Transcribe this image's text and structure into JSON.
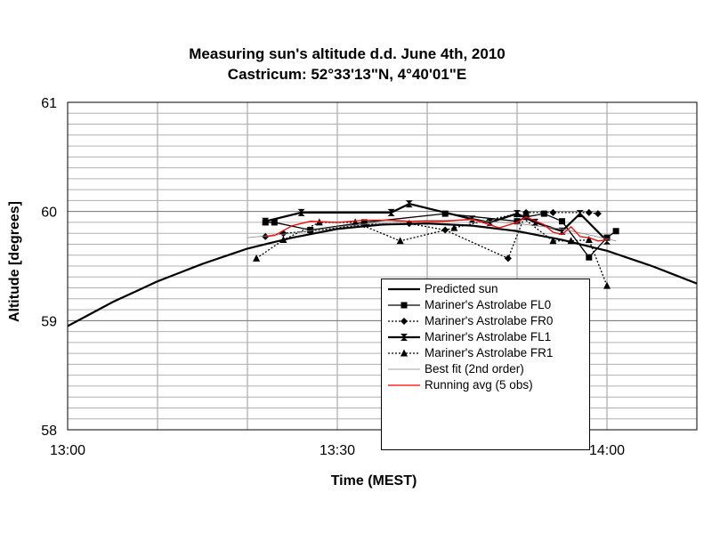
{
  "chart_data": {
    "type": "line",
    "title": "Measuring sun's altitude d.d. June 4th, 2010",
    "subtitle": "Castricum: 52°33'13\"N, 4°40'01\"E",
    "xlabel": "Time (MEST)",
    "ylabel": "Altitude [degrees]",
    "xlim": [
      "13:00",
      "14:10"
    ],
    "ylim": [
      58,
      61
    ],
    "x_ticks": [
      "13:00",
      "13:30",
      "14:00"
    ],
    "y_ticks": [
      "58",
      "59",
      "60",
      "61"
    ],
    "grid": true,
    "legend_position": "bottom-right",
    "series": [
      {
        "name": "Predicted sun",
        "color": "#000000",
        "style": "solid-thick",
        "marker": "none",
        "x": [
          "13:00",
          "13:05",
          "13:10",
          "13:15",
          "13:20",
          "13:25",
          "13:30",
          "13:35",
          "13:40",
          "13:45",
          "13:50",
          "13:55",
          "14:00",
          "14:05",
          "14:10"
        ],
        "y": [
          58.95,
          59.17,
          59.36,
          59.52,
          59.66,
          59.76,
          59.84,
          59.88,
          59.89,
          59.87,
          59.82,
          59.74,
          59.64,
          59.5,
          59.34
        ]
      },
      {
        "name": "Mariner's Astrolabe FL0",
        "color": "#000000",
        "style": "solid",
        "marker": "square",
        "x": [
          "13:22",
          "13:23",
          "13:27",
          "13:33",
          "13:42",
          "13:50",
          "13:51",
          "13:53",
          "13:55",
          "13:58",
          "14:00",
          "14:01"
        ],
        "y": [
          59.9,
          59.9,
          59.83,
          59.9,
          59.98,
          59.91,
          59.95,
          59.98,
          59.91,
          59.58,
          59.76,
          59.82
        ]
      },
      {
        "name": "Mariner's Astrolabe FR0",
        "color": "#000000",
        "style": "dotted",
        "marker": "diamond",
        "x": [
          "13:22",
          "13:24",
          "13:27",
          "13:33",
          "13:38",
          "13:42",
          "13:49",
          "13:51",
          "13:54",
          "13:58",
          "13:59"
        ],
        "y": [
          59.77,
          59.8,
          59.82,
          59.88,
          59.89,
          59.83,
          59.57,
          59.99,
          59.99,
          59.99,
          59.98
        ]
      },
      {
        "name": "Mariner's Astrolabe FL1",
        "color": "#000000",
        "style": "solid-thick",
        "marker": "hourglass",
        "x": [
          "13:22",
          "13:26",
          "13:36",
          "13:38",
          "13:45",
          "13:47",
          "13:50",
          "13:52",
          "13:55",
          "13:57",
          "14:00"
        ],
        "y": [
          59.91,
          59.99,
          59.99,
          60.07,
          59.93,
          59.9,
          59.98,
          59.9,
          59.82,
          59.98,
          59.73
        ]
      },
      {
        "name": "Mariner's Astrolabe FR1",
        "color": "#000000",
        "style": "dotted",
        "marker": "triangle",
        "x": [
          "13:21",
          "13:24",
          "13:28",
          "13:32",
          "13:37",
          "13:43",
          "13:50",
          "13:54",
          "13:56",
          "13:58",
          "14:00"
        ],
        "y": [
          59.57,
          59.74,
          59.9,
          59.9,
          59.73,
          59.85,
          59.98,
          59.73,
          59.73,
          59.74,
          59.32
        ]
      },
      {
        "name": "Best fit (2nd order)",
        "color": "#888888",
        "style": "thin",
        "marker": "none",
        "x": [
          "13:20",
          "13:25",
          "13:30",
          "13:35",
          "13:40",
          "13:45",
          "13:50",
          "13:55",
          "14:00",
          "14:01"
        ],
        "y": [
          59.76,
          59.8,
          59.86,
          59.9,
          59.92,
          59.92,
          59.89,
          59.84,
          59.75,
          59.73
        ]
      },
      {
        "name": "Running avg (5 obs)",
        "color": "#ff0000",
        "style": "solid",
        "marker": "none",
        "x": [
          "13:22",
          "13:23",
          "13:25",
          "13:27",
          "13:30",
          "13:33",
          "13:36",
          "13:38",
          "13:42",
          "13:45",
          "13:48",
          "13:50",
          "13:51",
          "13:53",
          "13:54",
          "13:55",
          "13:56",
          "13:57",
          "13:58",
          "13:59",
          "14:00"
        ],
        "y": [
          59.77,
          59.78,
          59.87,
          59.91,
          59.9,
          59.92,
          59.92,
          59.91,
          59.91,
          59.93,
          59.85,
          59.9,
          59.95,
          59.88,
          59.81,
          59.79,
          59.86,
          59.77,
          59.76,
          59.73,
          59.74
        ]
      }
    ]
  }
}
